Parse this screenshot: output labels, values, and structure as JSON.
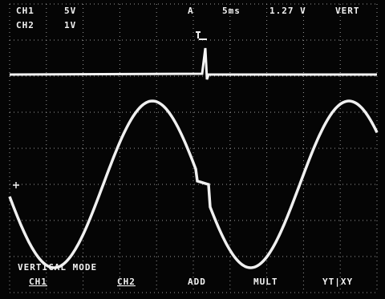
{
  "readout": {
    "ch1_label": "CH1",
    "ch1_scale": "5V",
    "ch2_label": "CH2",
    "ch2_scale": "1V",
    "trigger_source": "A",
    "timebase": "5ms",
    "trigger_level": "1.27 V",
    "mode": "VERT"
  },
  "menu": {
    "title": "VERTICAL MODE",
    "options": [
      "CH1",
      "CH2",
      "ADD",
      "MULT",
      "YT|XY"
    ]
  }
}
